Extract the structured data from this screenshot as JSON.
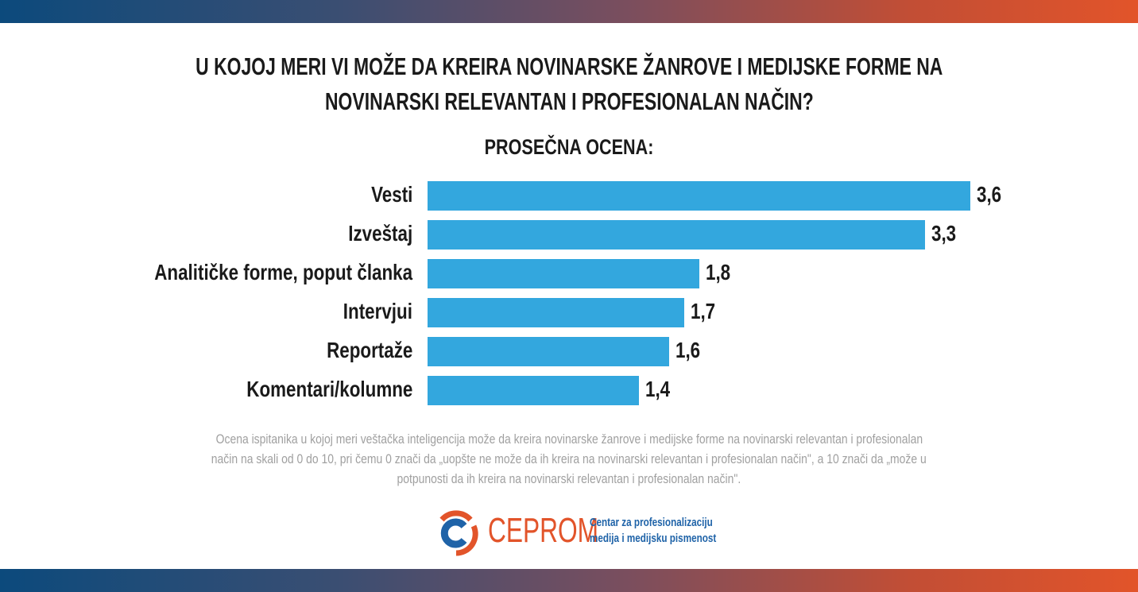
{
  "chart_data": {
    "type": "bar",
    "orientation": "horizontal",
    "title": [
      "U KOJOJ MERI VI MOŽE DA KREIRA NOVINARSKE ŽANROVE I MEDIJSKE FORME NA",
      "NOVINARSKI RELEVANTAN I PROFESIONALAN NAČIN?"
    ],
    "subtitle": "PROSEČNA OCENA:",
    "categories": [
      "Vesti",
      "Izveštaj",
      "Analitičke forme, poput članka",
      "Intervjui",
      "Reportaže",
      "Komentari/kolumne"
    ],
    "values": [
      3.6,
      3.3,
      1.8,
      1.7,
      1.6,
      1.4
    ],
    "value_labels": [
      "3,6",
      "3,3",
      "1,8",
      "1,7",
      "1,6",
      "1,4"
    ],
    "bar_color": "#33a7de",
    "grid": false,
    "xlim": [
      0,
      3.6
    ]
  },
  "note": [
    "Ocena ispitanika u kojoj meri veštačka inteligencija može da kreira novinarske žanrove i medijske forme na novinarski relevantan i profesionalan",
    "način na skali od 0 do 10, pri čemu 0 znači da „uopšte ne može da ih kreira na novinarski relevantan i profesionalan način\", a 10 znači da „može u",
    "potpunosti da ih kreira na novinarski relevantan i profesionalan način\"."
  ],
  "logo": {
    "name": "CEPROM",
    "tagline": [
      "Centar za profesionalizaciju",
      "medija i medijsku pismenost"
    ],
    "colors": {
      "orange": "#e2542a",
      "blue": "#1f63a8"
    }
  }
}
